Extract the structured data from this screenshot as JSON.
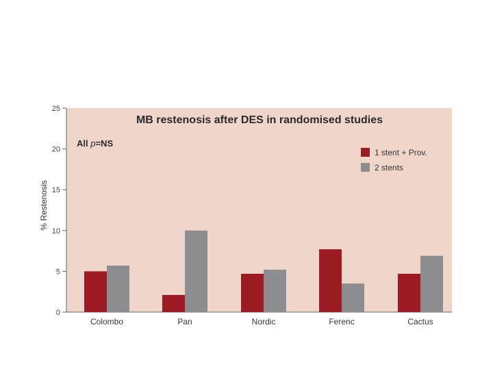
{
  "chart_data": {
    "type": "bar",
    "title": "MB restenosis after DES in randomised studies",
    "annotation": {
      "prefix": "All ",
      "italic": "p",
      "suffix": "=NS"
    },
    "xlabel": "",
    "ylabel": "% Restenosis",
    "ylim": [
      0,
      25
    ],
    "yticks": [
      "0",
      "5",
      "10",
      "15",
      "20",
      "25"
    ],
    "categories": [
      "Colombo",
      "Pan",
      "Nordic",
      "Ferenc",
      "Cactus"
    ],
    "series": [
      {
        "name": "1 stent + Prov.",
        "color": "#9b1c24",
        "values": [
          5.0,
          2.1,
          4.7,
          7.7,
          4.7
        ]
      },
      {
        "name": "2 stents",
        "color": "#8d8d90",
        "values": [
          5.7,
          10.0,
          5.2,
          3.5,
          6.9
        ]
      }
    ],
    "legend_position": "top-right",
    "grid": false,
    "plot_background": "#f0d5cb"
  }
}
